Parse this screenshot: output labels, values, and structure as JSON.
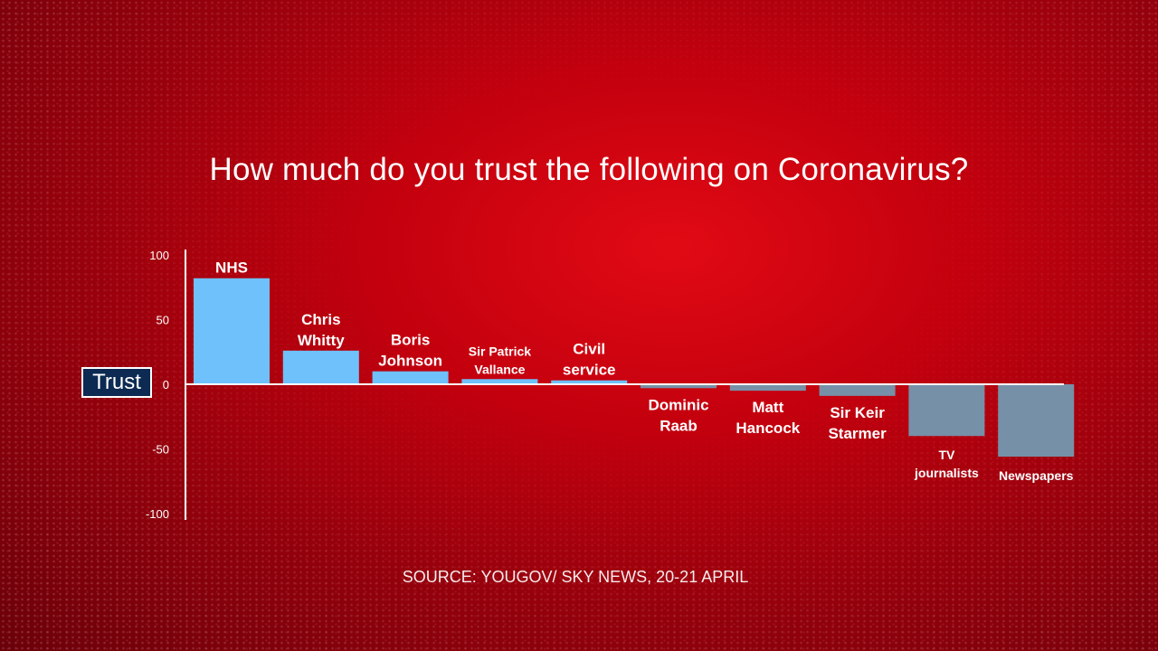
{
  "title": "How much do you trust the following on Coronavirus?",
  "source": "SOURCE: YOUGOV/ SKY NEWS, 20-21 APRIL",
  "ylabel": "Trust",
  "colors": {
    "positive": "#6ec1fa",
    "negative": "#7690a8",
    "axis": "#ffffff",
    "label": "#ffffff",
    "background": "#c3000e"
  },
  "chart_data": {
    "type": "bar",
    "title": "How much do you trust the following on Coronavirus?",
    "ylabel": "Trust",
    "ylim": [
      -100,
      100
    ],
    "yticks": [
      100,
      50,
      0,
      -50,
      -100
    ],
    "grid": false,
    "categories": [
      [
        "NHS"
      ],
      [
        "Chris",
        "Whitty"
      ],
      [
        "Boris",
        "Johnson"
      ],
      [
        "Sir Patrick",
        "Vallance"
      ],
      [
        "Civil",
        "service"
      ],
      [
        "Dominic",
        "Raab"
      ],
      [
        "Matt",
        "Hancock"
      ],
      [
        "Sir Keir",
        "Starmer"
      ],
      [
        "TV",
        "journalists"
      ],
      [
        "Newspapers"
      ]
    ],
    "values": [
      82,
      26,
      10,
      4,
      3,
      -3,
      -5,
      -9,
      -40,
      -56
    ]
  }
}
